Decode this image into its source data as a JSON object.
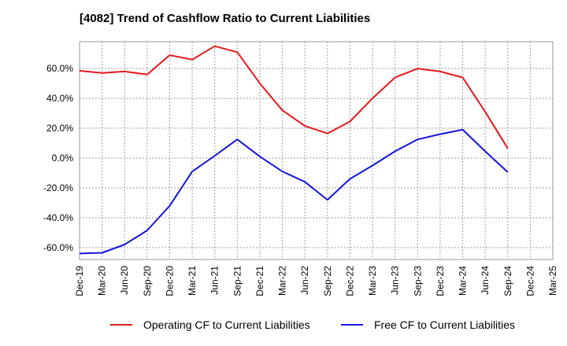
{
  "chart_data": {
    "type": "line",
    "title": "[4082]  Trend of Cashflow Ratio to Current Liabilities",
    "xlabel": "",
    "ylabel": "",
    "ylim": [
      -68,
      78
    ],
    "y_ticks": [
      60,
      40,
      20,
      0,
      -20,
      -40,
      -60
    ],
    "y_tick_labels": [
      "60.0%",
      "40.0%",
      "20.0%",
      "0.0%",
      "-20.0%",
      "-40.0%",
      "-60.0%"
    ],
    "categories": [
      "Dec-19",
      "Mar-20",
      "Jun-20",
      "Sep-20",
      "Dec-20",
      "Mar-21",
      "Jun-21",
      "Sep-21",
      "Dec-21",
      "Mar-22",
      "Jun-22",
      "Sep-22",
      "Dec-22",
      "Mar-23",
      "Jun-23",
      "Sep-23",
      "Dec-23",
      "Mar-24",
      "Jun-24",
      "Sep-24",
      "Dec-24",
      "Mar-25"
    ],
    "grid": true,
    "legend_position": "bottom",
    "series": [
      {
        "name": "Operating CF to Current Liabilities",
        "color": "#e41a1c",
        "values": [
          58.5,
          57.0,
          58.0,
          56.0,
          69.0,
          66.0,
          75.0,
          71.0,
          50.0,
          32.0,
          21.5,
          16.5,
          24.5,
          40.0,
          54.0,
          60.0,
          58.0,
          54.0,
          31.0,
          6.5,
          null,
          null
        ]
      },
      {
        "name": "Free CF to Current Liabilities",
        "color": "#1515d9",
        "values": [
          -64.0,
          -63.5,
          -58.0,
          -48.5,
          -32.0,
          -9.0,
          1.5,
          12.5,
          1.0,
          -9.0,
          -16.0,
          -28.0,
          -14.0,
          -5.0,
          4.5,
          12.5,
          16.0,
          19.0,
          4.5,
          -9.5,
          null,
          null
        ]
      }
    ]
  }
}
